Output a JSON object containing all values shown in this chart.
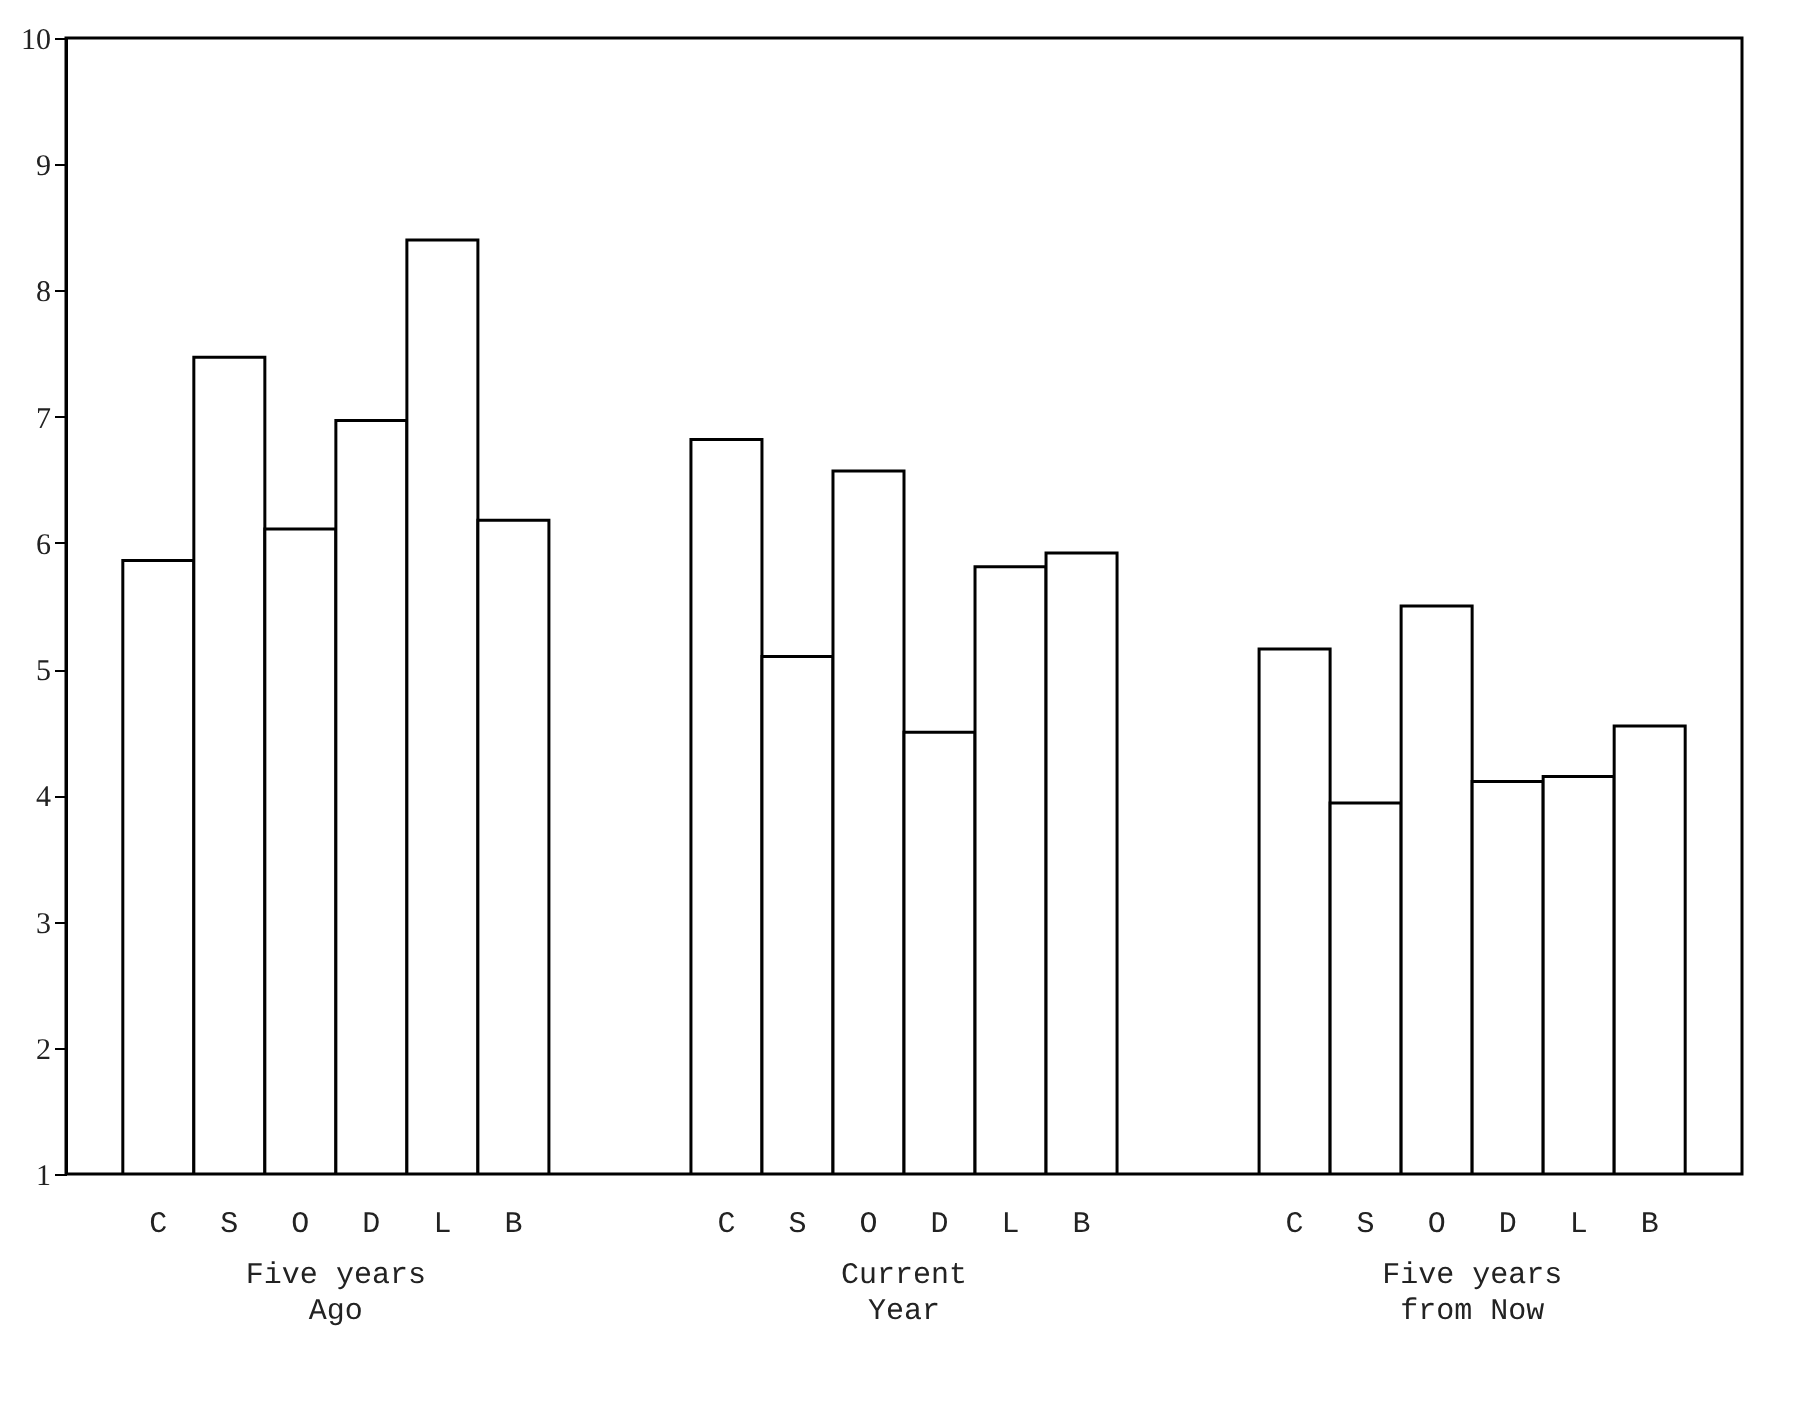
{
  "chart_data": {
    "type": "bar",
    "categories": [
      "Five years\nAgo",
      "Current\nYear",
      "Five years\nfrom Now"
    ],
    "series": [
      {
        "name": "C",
        "color": "#ffffff",
        "values": [
          5.86,
          6.82,
          5.16
        ]
      },
      {
        "name": "S",
        "color": "#ffffff",
        "values": [
          7.47,
          5.1,
          3.94
        ]
      },
      {
        "name": "O",
        "color": "#ffffff",
        "values": [
          6.11,
          6.57,
          5.5
        ]
      },
      {
        "name": "D",
        "color": "#ffffff",
        "values": [
          6.97,
          4.5,
          4.11
        ]
      },
      {
        "name": "L",
        "color": "#ffffff",
        "values": [
          8.4,
          5.81,
          4.15
        ]
      },
      {
        "name": "B",
        "color": "#ffffff",
        "values": [
          6.18,
          5.92,
          4.55
        ]
      }
    ],
    "ylim": [
      1,
      10
    ],
    "yticks": [
      1,
      2,
      3,
      4,
      5,
      6,
      7,
      8,
      9,
      10
    ]
  }
}
